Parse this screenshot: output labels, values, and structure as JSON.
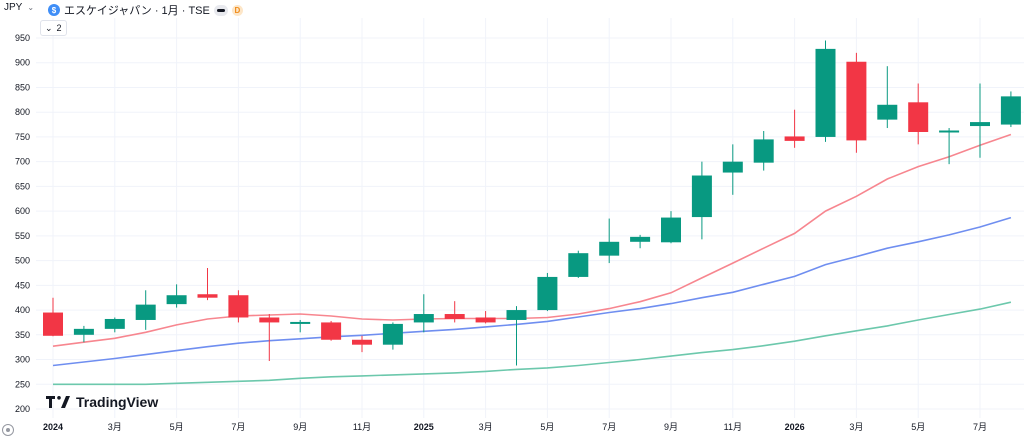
{
  "header": {
    "currency": "JPY",
    "symbol_logo": "$",
    "title": "エスケイジャパン · 1月 · TSE",
    "d_badge": "D",
    "indicator_count": "2"
  },
  "watermark": "TradingView",
  "colors": {
    "up": "#089981",
    "down": "#f23645",
    "ma_red": "#f7868f",
    "ma_blue": "#6f8ef0",
    "ma_teal": "#6cc8ac",
    "grid": "#f0f3fa",
    "text": "#131722"
  },
  "chart_data": {
    "type": "candlestick",
    "y_ticks": [
      200,
      250,
      300,
      350,
      400,
      450,
      500,
      550,
      600,
      650,
      700,
      750,
      800,
      850,
      900,
      950
    ],
    "ylim": [
      200,
      960
    ],
    "x_labels": [
      "2024",
      "3月",
      "5月",
      "7月",
      "9月",
      "11月",
      "2025",
      "3月",
      "5月",
      "7月",
      "9月",
      "11月",
      "2026",
      "3月",
      "5月",
      "7月"
    ],
    "x_label_bold": [
      true,
      false,
      false,
      false,
      false,
      false,
      true,
      false,
      false,
      false,
      false,
      false,
      true,
      false,
      false,
      false
    ],
    "x_label_month_index": [
      0,
      2,
      4,
      6,
      8,
      10,
      12,
      14,
      16,
      18,
      20,
      22,
      24,
      26,
      28,
      30
    ],
    "months": [
      "2024-01",
      "2024-02",
      "2024-03",
      "2024-04",
      "2024-05",
      "2024-06",
      "2024-07",
      "2024-08",
      "2024-09",
      "2024-10",
      "2024-11",
      "2024-12",
      "2025-01",
      "2025-02",
      "2025-03",
      "2025-04",
      "2025-05",
      "2025-06",
      "2025-07",
      "2025-08",
      "2025-09",
      "2025-10",
      "2025-11",
      "2025-12",
      "2026-01",
      "2026-02",
      "2026-03",
      "2026-04",
      "2026-05",
      "2026-06",
      "2026-07",
      "2026-08"
    ],
    "ohlc": [
      [
        395,
        425,
        347,
        348
      ],
      [
        350,
        368,
        335,
        362
      ],
      [
        362,
        385,
        355,
        382
      ],
      [
        380,
        440,
        360,
        411
      ],
      [
        412,
        452,
        405,
        430
      ],
      [
        432,
        485,
        420,
        425
      ],
      [
        430,
        440,
        375,
        385
      ],
      [
        385,
        392,
        297,
        375
      ],
      [
        375,
        380,
        355,
        376
      ],
      [
        375,
        378,
        338,
        340
      ],
      [
        340,
        348,
        315,
        330
      ],
      [
        330,
        375,
        320,
        372
      ],
      [
        375,
        432,
        355,
        392
      ],
      [
        392,
        418,
        375,
        382
      ],
      [
        385,
        398,
        373,
        375
      ],
      [
        380,
        408,
        288,
        400
      ],
      [
        400,
        475,
        398,
        467
      ],
      [
        467,
        520,
        465,
        515
      ],
      [
        510,
        585,
        495,
        538
      ],
      [
        538,
        552,
        525,
        548
      ],
      [
        537,
        600,
        535,
        587
      ],
      [
        588,
        700,
        543,
        672
      ],
      [
        678,
        735,
        633,
        700
      ],
      [
        698,
        762,
        682,
        745
      ],
      [
        751,
        805,
        728,
        742
      ],
      [
        750,
        945,
        740,
        928
      ],
      [
        902,
        920,
        718,
        743
      ],
      [
        785,
        893,
        768,
        815
      ],
      [
        820,
        858,
        735,
        760
      ],
      [
        760,
        768,
        695,
        763
      ],
      [
        772,
        858,
        708,
        780
      ],
      [
        775,
        842,
        770,
        832
      ]
    ],
    "series": [
      {
        "name": "",
        "color": "#f7868f",
        "values": [
          327,
          335,
          343,
          355,
          370,
          382,
          388,
          390,
          392,
          388,
          382,
          380,
          382,
          383,
          383,
          383,
          385,
          392,
          403,
          417,
          435,
          465,
          495,
          525,
          555,
          600,
          630,
          665,
          690,
          710,
          733,
          755
        ]
      },
      {
        "name": "",
        "color": "#6f8ef0",
        "values": [
          288,
          295,
          302,
          310,
          318,
          326,
          333,
          338,
          342,
          346,
          349,
          353,
          357,
          361,
          366,
          371,
          377,
          386,
          395,
          403,
          413,
          425,
          436,
          452,
          468,
          492,
          508,
          525,
          538,
          552,
          568,
          587
        ]
      },
      {
        "name": "",
        "color": "#6cc8ac",
        "values": [
          250,
          250,
          250,
          250,
          252,
          254,
          256,
          258,
          262,
          265,
          267,
          269,
          271,
          273,
          276,
          280,
          283,
          288,
          294,
          300,
          307,
          314,
          320,
          328,
          337,
          348,
          358,
          368,
          380,
          391,
          402,
          416
        ]
      }
    ]
  }
}
